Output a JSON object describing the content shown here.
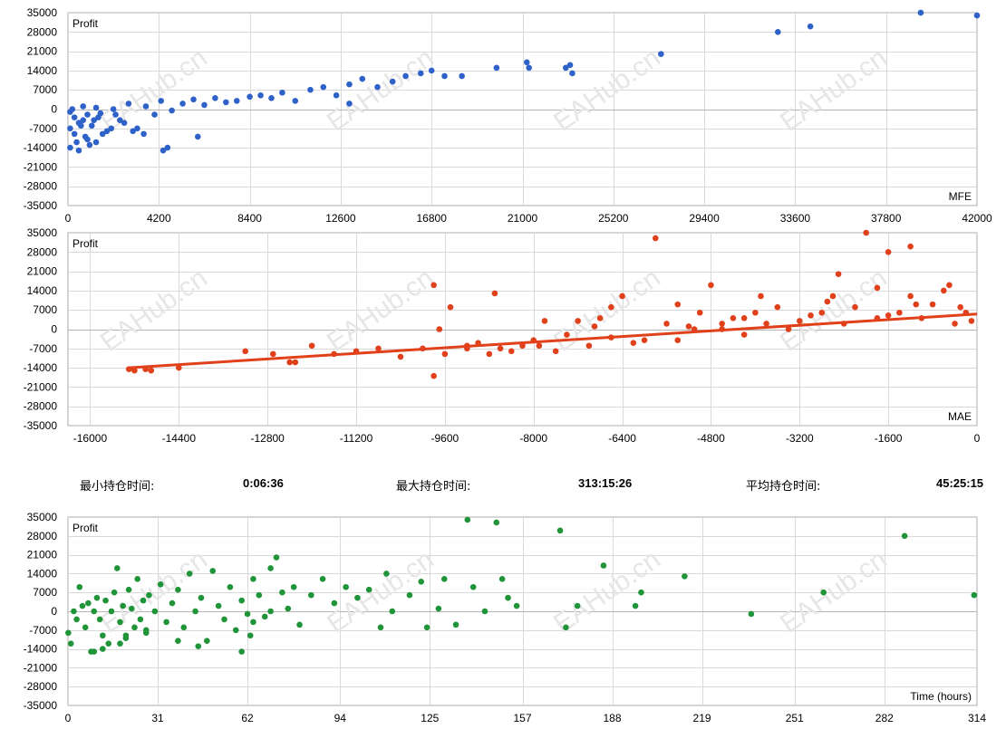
{
  "chart_data": [
    {
      "type": "scatter",
      "ylabel": "Profit",
      "xlabel": "MFE",
      "xlim": [
        0,
        42000
      ],
      "ylim": [
        -35000,
        35000
      ],
      "x_ticks": [
        0,
        4200,
        8400,
        12600,
        16800,
        21000,
        25200,
        29400,
        33600,
        37800,
        42000
      ],
      "y_ticks": [
        -35000,
        -28000,
        -21000,
        -14000,
        -7000,
        0,
        7000,
        14000,
        21000,
        28000,
        35000
      ],
      "grid": true,
      "color": "#2f62c8",
      "series": [
        {
          "points_note": "",
          "x": [
            100,
            200,
            300,
            500,
            700,
            900,
            1100,
            1300,
            1500,
            1800,
            2100,
            2400,
            2800,
            3200,
            3600,
            4000,
            4300,
            4800,
            5300,
            5800,
            6300,
            6800,
            7300,
            7800,
            8400,
            8900,
            9400,
            9900,
            10500,
            11200,
            11800,
            12400,
            13000,
            13600,
            14300,
            15000,
            15600,
            16300,
            16800,
            17400,
            18200,
            19800,
            21200,
            21300,
            23000,
            23200,
            23300,
            27400,
            32800,
            34300,
            39400,
            42000,
            300,
            400,
            600,
            800,
            1000,
            1200,
            1400,
            1600,
            2000,
            2200,
            2600,
            3000,
            3500,
            100,
            500,
            900,
            1300,
            4400,
            6000,
            13000,
            4600,
            100,
            700
          ],
          "y": [
            -1000,
            0,
            -3000,
            -5000,
            1000,
            -2000,
            -6000,
            500,
            -1500,
            -8000,
            0,
            -4000,
            2000,
            -7000,
            1000,
            -2000,
            3000,
            -500,
            2000,
            3500,
            1500,
            4000,
            2500,
            3000,
            4500,
            5000,
            4000,
            6000,
            3000,
            7000,
            8000,
            5000,
            9000,
            11000,
            8000,
            10000,
            12000,
            13000,
            14000,
            12000,
            12000,
            15000,
            17000,
            15000,
            15000,
            16000,
            13000,
            20000,
            28000,
            30000,
            35000,
            34000,
            -9000,
            -12000,
            -6000,
            -10000,
            -13000,
            -4000,
            -3000,
            -9000,
            -7000,
            -2000,
            -5000,
            -8000,
            -9000,
            -14000,
            -15000,
            -11000,
            -12000,
            -15000,
            -10000,
            2000,
            -14000,
            -7000,
            -4000
          ]
        }
      ]
    },
    {
      "type": "scatter",
      "ylabel": "Profit",
      "xlabel": "MAE",
      "xlim": [
        -16400,
        0
      ],
      "ylim": [
        -35000,
        35000
      ],
      "x_ticks": [
        -16000,
        -14400,
        -12800,
        -11200,
        -9600,
        -8000,
        -6400,
        -4800,
        -3200,
        -1600,
        0
      ],
      "y_ticks": [
        -35000,
        -28000,
        -21000,
        -14000,
        -7000,
        0,
        7000,
        14000,
        21000,
        28000,
        35000
      ],
      "grid": true,
      "color": "#e0401a",
      "trendline": {
        "x": [
          -15300,
          0
        ],
        "y": [
          -14000,
          5500
        ]
      },
      "series": [
        {
          "x": [
            -15300,
            -15200,
            -15000,
            -14900,
            -14400,
            -13200,
            -12700,
            -12400,
            -12300,
            -12000,
            -11600,
            -11200,
            -10800,
            -10400,
            -10000,
            -9800,
            -9600,
            -9500,
            -9200,
            -9000,
            -8800,
            -8600,
            -8400,
            -8200,
            -8000,
            -7800,
            -7600,
            -7400,
            -7200,
            -7000,
            -6800,
            -6600,
            -6400,
            -6200,
            -6000,
            -5800,
            -5600,
            -5400,
            -5200,
            -5000,
            -4800,
            -4600,
            -4400,
            -4200,
            -4000,
            -3800,
            -3600,
            -3400,
            -3200,
            -3000,
            -2800,
            -2600,
            -2400,
            -2200,
            -2000,
            -1800,
            -1600,
            -1400,
            -1200,
            -1000,
            -800,
            -600,
            -400,
            -200,
            -100,
            -9800,
            -9700,
            -8700,
            -5400,
            -4600,
            -2700,
            -1600,
            -1800,
            -1200,
            -9200,
            -7900,
            -6600,
            -5100,
            -3900,
            -2500,
            -1100,
            -500,
            -300,
            -6900,
            -4200
          ],
          "y": [
            -14500,
            -15000,
            -14500,
            -15000,
            -14000,
            -8000,
            -9000,
            -12000,
            -12000,
            -6000,
            -9000,
            -8000,
            -7000,
            -10000,
            -7000,
            -17000,
            -9000,
            8000,
            -6000,
            -5000,
            -9000,
            -7000,
            -8000,
            -6000,
            -4000,
            3000,
            -8000,
            -2000,
            3000,
            -6000,
            4000,
            -3000,
            12000,
            -5000,
            -4000,
            33000,
            2000,
            -4000,
            1000,
            6000,
            16000,
            0,
            4000,
            -2000,
            6000,
            2000,
            8000,
            0,
            3000,
            5000,
            6000,
            12000,
            2000,
            8000,
            35000,
            4000,
            28000,
            6000,
            30000,
            4000,
            9000,
            14000,
            2000,
            6000,
            3000,
            16000,
            0,
            13000,
            9000,
            2000,
            10000,
            5000,
            15000,
            12000,
            -7000,
            -6000,
            8000,
            0,
            12000,
            20000,
            9000,
            16000,
            8000,
            1000,
            4000
          ]
        }
      ]
    },
    {
      "type": "scatter",
      "ylabel": "Profit",
      "xlabel": "Time (hours)",
      "xlim": [
        0,
        314
      ],
      "ylim": [
        -35000,
        35000
      ],
      "x_ticks": [
        0,
        31,
        62,
        94,
        125,
        157,
        188,
        219,
        251,
        282,
        314
      ],
      "y_ticks": [
        -35000,
        -28000,
        -21000,
        -14000,
        -7000,
        0,
        7000,
        14000,
        21000,
        28000,
        35000
      ],
      "grid": true,
      "color": "#1f9438",
      "series": [
        {
          "x": [
            0.1,
            1,
            2,
            3,
            4,
            5,
            6,
            7,
            8,
            9,
            10,
            11,
            12,
            13,
            14,
            15,
            16,
            17,
            18,
            19,
            20,
            21,
            22,
            23,
            24,
            25,
            26,
            27,
            28,
            30,
            32,
            34,
            36,
            38,
            40,
            42,
            44,
            46,
            48,
            50,
            52,
            54,
            56,
            58,
            60,
            62,
            64,
            66,
            68,
            70,
            72,
            74,
            76,
            78,
            80,
            84,
            88,
            92,
            96,
            100,
            104,
            108,
            110,
            112,
            118,
            122,
            124,
            128,
            130,
            134,
            138,
            140,
            144,
            148,
            150,
            152,
            155,
            170,
            172,
            176,
            185,
            196,
            198,
            213,
            236,
            261,
            289,
            313,
            9,
            12,
            18,
            20,
            27,
            38,
            45,
            60,
            63,
            64,
            70
          ],
          "y": [
            -8000,
            -12000,
            0,
            -3000,
            9000,
            2000,
            -6000,
            3000,
            -15000,
            0,
            5000,
            -3000,
            -9000,
            4000,
            -12000,
            0,
            7000,
            16000,
            -4000,
            2000,
            -10000,
            8000,
            1000,
            -6000,
            12000,
            -3000,
            4000,
            -8000,
            6000,
            0,
            10000,
            -4000,
            3000,
            8000,
            -6000,
            14000,
            0,
            5000,
            -11000,
            15000,
            2000,
            -3000,
            9000,
            -7000,
            4000,
            -1000,
            12000,
            6000,
            -2000,
            16000,
            20000,
            7000,
            1000,
            9000,
            -5000,
            6000,
            12000,
            3000,
            9000,
            5000,
            8000,
            -6000,
            14000,
            0,
            6000,
            11000,
            -6000,
            1000,
            12000,
            -5000,
            34000,
            9000,
            0,
            33000,
            12000,
            5000,
            2000,
            30000,
            -6000,
            2000,
            17000,
            2000,
            7000,
            13000,
            -1000,
            7000,
            28000,
            6000,
            -15000,
            -14000,
            -12000,
            -9000,
            -7000,
            -11000,
            -13000,
            -15000,
            -9000,
            -4000,
            0
          ]
        }
      ]
    }
  ],
  "stats": {
    "min_label": "最小持仓时间:",
    "min_value": "0:06:36",
    "max_label": "最大持仓时间:",
    "max_value": "313:15:26",
    "avg_label": "平均持仓时间:",
    "avg_value": "45:25:15"
  },
  "watermark": {
    "text": "EAHub.cn",
    "color": "#e6e6e6"
  }
}
